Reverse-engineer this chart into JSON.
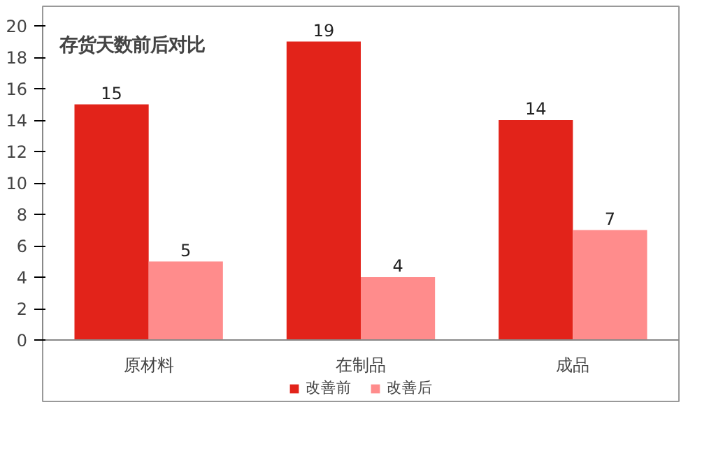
{
  "chart_data": {
    "type": "bar",
    "title": "存货天数前后对比",
    "categories": [
      "原材料",
      "在制品",
      "成品"
    ],
    "series": [
      {
        "name": "改善前",
        "color": "#e2231a",
        "values": [
          15,
          19,
          14
        ]
      },
      {
        "name": "改善后",
        "color": "#ff8c8c",
        "values": [
          5,
          4,
          7
        ]
      }
    ],
    "ylim": [
      0,
      20
    ],
    "yticks": [
      0,
      2,
      4,
      6,
      8,
      10,
      12,
      14,
      16,
      18,
      20
    ],
    "grid": false,
    "legend": "bottom",
    "data_labels": true
  }
}
